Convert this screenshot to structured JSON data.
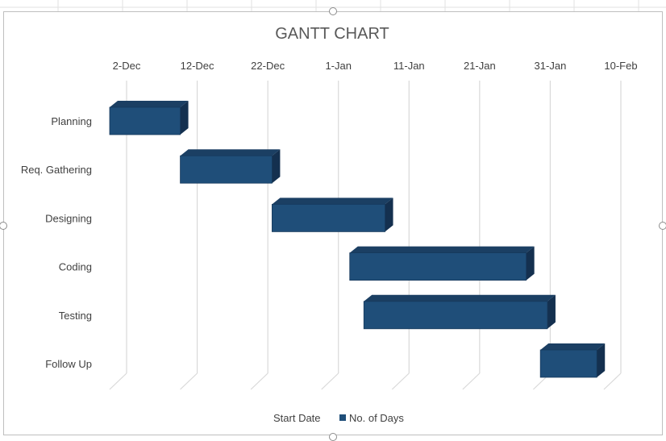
{
  "colors": {
    "bar_front": "#1f4e79",
    "bar_top": "#1b3f63",
    "bar_side": "#14304f",
    "gridline": "#d9d9d9",
    "sheet_grid": "#e1e1e1"
  },
  "chart_data": {
    "type": "bar",
    "orientation": "horizontal",
    "stacked": true,
    "style": "3d",
    "title": "GANTT CHART",
    "categories": [
      "Planning",
      "Req. Gathering",
      "Designing",
      "Coding",
      "Testing",
      "Follow Up"
    ],
    "x_axis": {
      "position": "top",
      "tick_labels": [
        "2-Dec",
        "12-Dec",
        "22-Dec",
        "1-Jan",
        "11-Jan",
        "21-Jan",
        "31-Jan",
        "10-Feb"
      ],
      "range": [
        "2-Dec",
        "10-Feb"
      ],
      "major_unit_days": 10
    },
    "series": [
      {
        "name": "Start Date",
        "visible": false,
        "values": [
          "2-Dec",
          "12-Dec",
          "25-Dec",
          "5-Jan",
          "7-Jan",
          "1-Feb"
        ]
      },
      {
        "name": "No. of Days",
        "visible": true,
        "values": [
          10,
          13,
          16,
          25,
          26,
          8
        ]
      }
    ],
    "grid": true,
    "legend": {
      "position": "bottom",
      "entries": [
        "Start Date",
        "No. of Days"
      ]
    }
  }
}
